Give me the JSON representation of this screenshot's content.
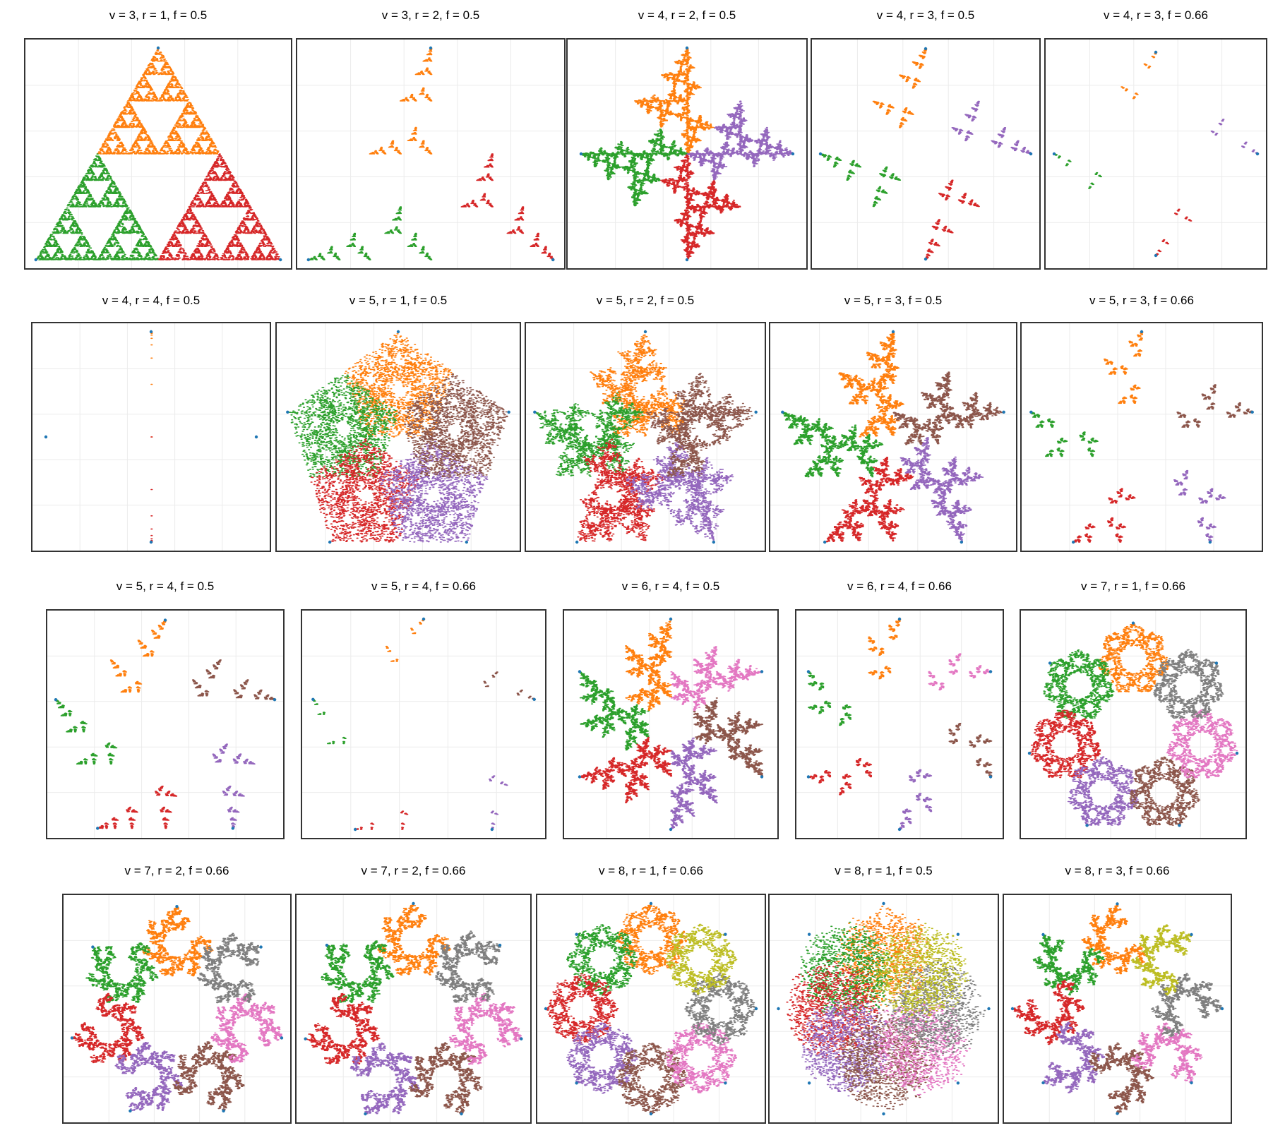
{
  "colors": {
    "vertex": "#1f77b4",
    "palette": [
      "#ff7f0e",
      "#2ca02c",
      "#d62728",
      "#9467bd",
      "#8c564b",
      "#e377c2",
      "#7f7f7f",
      "#bcbd22"
    ],
    "frame": "#333333",
    "grid": "#ebebeb"
  },
  "chart_data": [
    {
      "type": "scatter",
      "title": "v = 3, r = 1, f = 0.5",
      "v": 3,
      "r": 1,
      "f": 0.5
    },
    {
      "type": "scatter",
      "title": "v = 3, r = 2, f = 0.5",
      "v": 3,
      "r": 2,
      "f": 0.5
    },
    {
      "type": "scatter",
      "title": "v = 4, r = 2, f = 0.5",
      "v": 4,
      "r": 2,
      "f": 0.5
    },
    {
      "type": "scatter",
      "title": "v = 4, r = 3, f = 0.5",
      "v": 4,
      "r": 3,
      "f": 0.5
    },
    {
      "type": "scatter",
      "title": "v = 4, r = 3, f = 0.66",
      "v": 4,
      "r": 3,
      "f": 0.66
    },
    {
      "type": "scatter",
      "title": "v = 4, r = 4, f = 0.5",
      "v": 4,
      "r": 4,
      "f": 0.5
    },
    {
      "type": "scatter",
      "title": "v = 5, r = 1, f = 0.5",
      "v": 5,
      "r": 1,
      "f": 0.5
    },
    {
      "type": "scatter",
      "title": "v = 5, r = 2, f = 0.5",
      "v": 5,
      "r": 2,
      "f": 0.5
    },
    {
      "type": "scatter",
      "title": "v = 5, r = 3, f = 0.5",
      "v": 5,
      "r": 3,
      "f": 0.5
    },
    {
      "type": "scatter",
      "title": "v = 5, r = 3, f = 0.66",
      "v": 5,
      "r": 3,
      "f": 0.66
    },
    {
      "type": "scatter",
      "title": "v = 5, r = 4, f = 0.5",
      "v": 5,
      "r": 4,
      "f": 0.5
    },
    {
      "type": "scatter",
      "title": "v = 5, r = 4, f = 0.66",
      "v": 5,
      "r": 4,
      "f": 0.66
    },
    {
      "type": "scatter",
      "title": "v = 6, r = 4, f = 0.5",
      "v": 6,
      "r": 4,
      "f": 0.5
    },
    {
      "type": "scatter",
      "title": "v = 6, r = 4, f = 0.66",
      "v": 6,
      "r": 4,
      "f": 0.66
    },
    {
      "type": "scatter",
      "title": "v = 7, r = 1, f = 0.66",
      "v": 7,
      "r": 1,
      "f": 0.66
    },
    {
      "type": "scatter",
      "title": "v = 7, r = 2, f = 0.66",
      "v": 7,
      "r": 2,
      "f": 0.66
    },
    {
      "type": "scatter",
      "title": "v = 7, r = 2, f = 0.66",
      "v": 7,
      "r": 2,
      "f": 0.66
    },
    {
      "type": "scatter",
      "title": "v = 8, r = 1, f = 0.66",
      "v": 8,
      "r": 1,
      "f": 0.66
    },
    {
      "type": "scatter",
      "title": "v = 8, r = 1, f = 0.5",
      "v": 8,
      "r": 1,
      "f": 0.5
    },
    {
      "type": "scatter",
      "title": "v = 8, r = 3, f = 0.66",
      "v": 8,
      "r": 3,
      "f": 0.66
    }
  ]
}
